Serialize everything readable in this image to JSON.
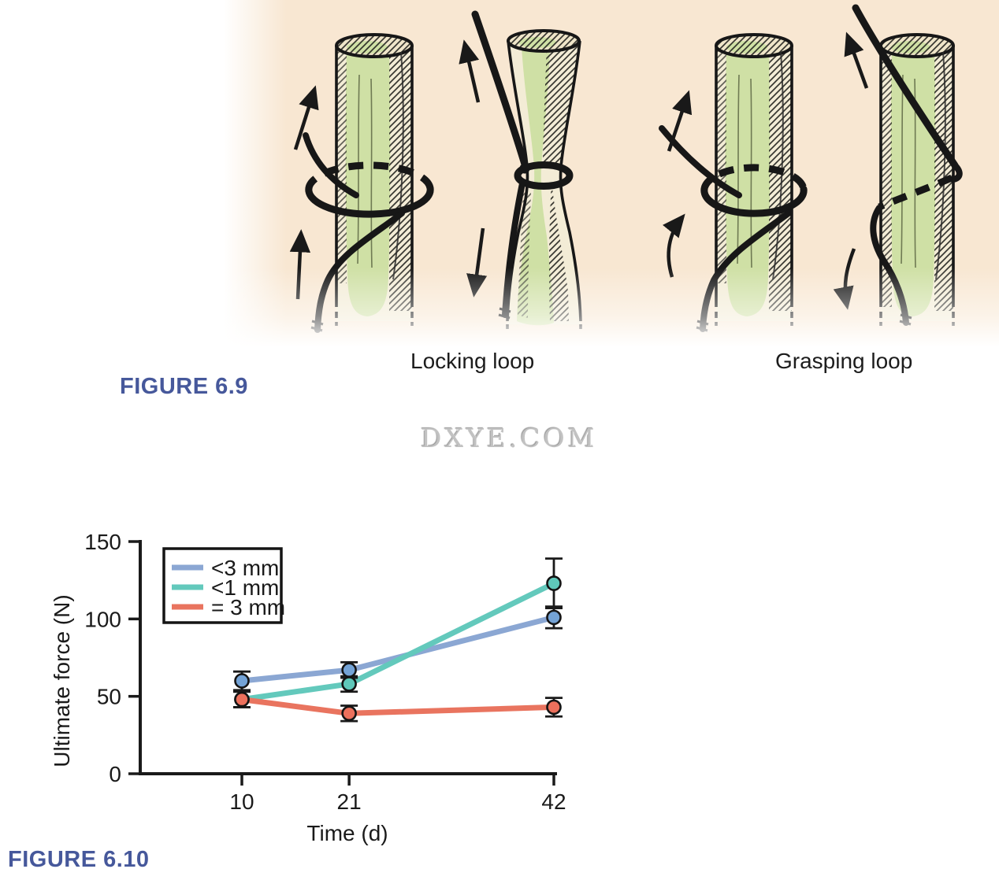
{
  "figure_6_9": {
    "caption": "FIGURE 6.9",
    "labels": {
      "locking": "Locking loop",
      "grasping": "Grasping loop"
    },
    "illustration": {
      "description": "Four hand-drawn tendon segments showing suture loop techniques",
      "background_color": "#f8e7d2",
      "tendon_core_color": "#cfe0a5",
      "tendon_sheath_color": "#f3ecd6",
      "suture_color": "#171717",
      "panel_names": [
        "locking-loop-relaxed",
        "locking-loop-tensioned",
        "grasping-loop-relaxed",
        "grasping-loop-tensioned"
      ]
    }
  },
  "watermark": {
    "text": "DXYE.COM",
    "color": "#c2c2c2"
  },
  "figure_6_10": {
    "caption": "FIGURE 6.10"
  },
  "caption_color": "#46589b",
  "chart_data": {
    "type": "line",
    "title": "",
    "xlabel": "Time (d)",
    "ylabel": "Ultimate force (N)",
    "x": [
      10,
      21,
      42
    ],
    "xtick_labels": [
      "10",
      "21",
      "42"
    ],
    "yticks": [
      0,
      50,
      100,
      150
    ],
    "ylim": [
      0,
      150
    ],
    "grid": false,
    "error_bars": true,
    "legend_position": "upper-left",
    "axis_color": "#1a1a1a",
    "series": [
      {
        "name": "<3 mm",
        "line_color": "#8ba7d3",
        "marker_color": "#74a3d6",
        "values": [
          60,
          67,
          101
        ],
        "errors": [
          6,
          5,
          7
        ]
      },
      {
        "name": "<1 mm",
        "line_color": "#63c9bc",
        "marker_color": "#5fc8ba",
        "values": [
          48,
          58,
          123
        ],
        "errors": [
          5,
          5,
          16
        ]
      },
      {
        "name": "= 3 mm",
        "line_color": "#e9745f",
        "marker_color": "#ec705c",
        "values": [
          48,
          39,
          43
        ],
        "errors": [
          5,
          5,
          6
        ]
      }
    ]
  }
}
